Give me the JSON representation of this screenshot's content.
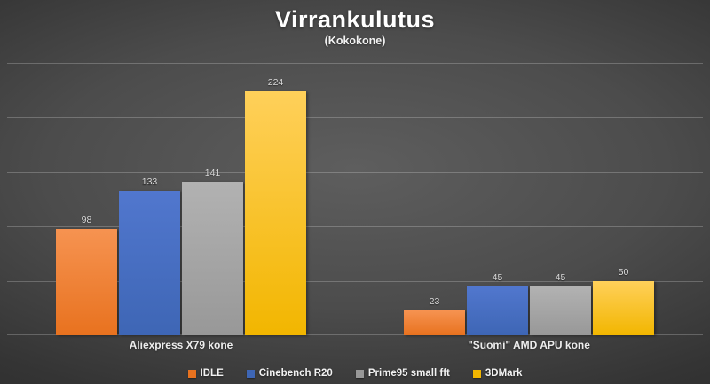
{
  "chart_data": {
    "type": "bar",
    "title": "Virrankulutus",
    "subtitle": "(Kokokone)",
    "categories": [
      "Aliexpress X79 kone",
      "\"Suomi\" AMD APU kone"
    ],
    "series": [
      {
        "name": "IDLE",
        "color": "#e8721f",
        "color_light": "#f69351",
        "values": [
          98,
          23
        ]
      },
      {
        "name": "Cinebench R20",
        "color": "#3e66b5",
        "color_light": "#5177ce",
        "values": [
          133,
          45
        ]
      },
      {
        "name": "Prime95 small fft",
        "color": "#989898",
        "color_light": "#b2b2b2",
        "values": [
          141,
          45
        ]
      },
      {
        "name": "3DMark",
        "color": "#f2b600",
        "color_light": "#ffd05a",
        "values": [
          224,
          50
        ]
      }
    ],
    "ylim": [
      0,
      250
    ],
    "gridline_step": 50,
    "grid": true,
    "y_axis_labels_visible": false,
    "data_labels": true,
    "legend_position": "bottom"
  },
  "colors": {
    "background_center": "#5e5e5e",
    "background_edge": "#232323",
    "gridline": "rgba(255,255,255,0.22)",
    "data_label": "#d9d9d9",
    "text": "#ffffff"
  }
}
